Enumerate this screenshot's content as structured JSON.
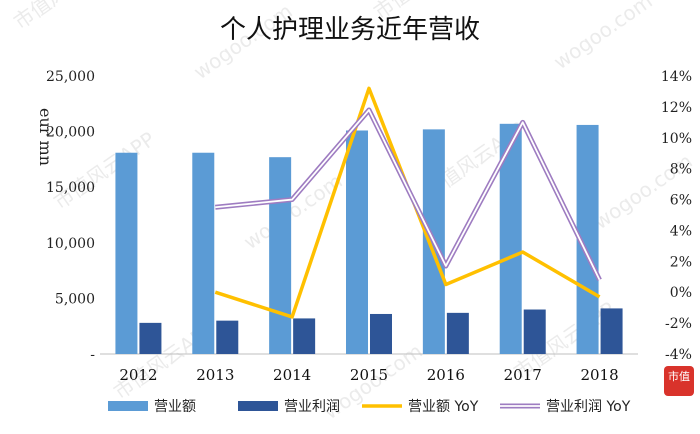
{
  "chart_data": {
    "type": "bar",
    "title": "个人护理业务近年营收",
    "unit_label": "eur mn",
    "categories": [
      "2012",
      "2013",
      "2014",
      "2015",
      "2016",
      "2017",
      "2018"
    ],
    "series": [
      {
        "name": "营业额",
        "axis": "left",
        "kind": "bar",
        "color": "#5b9bd5",
        "values": [
          18100,
          18100,
          17700,
          20100,
          20200,
          20700,
          20600
        ]
      },
      {
        "name": "营业利润",
        "axis": "left",
        "kind": "bar",
        "color": "#2e5597",
        "values": [
          2800,
          3000,
          3200,
          3600,
          3700,
          4000,
          4100
        ]
      },
      {
        "name": "营业额 YoY",
        "axis": "right",
        "kind": "line",
        "color": "#ffc000",
        "values": [
          null,
          0.0,
          -1.6,
          13.2,
          0.5,
          2.6,
          -0.3
        ]
      },
      {
        "name": "营业利润 YoY",
        "axis": "right",
        "kind": "line",
        "color": "#9e7cc1",
        "values": [
          null,
          5.5,
          6.0,
          11.8,
          1.7,
          11.0,
          0.8
        ]
      }
    ],
    "y_left": {
      "min": 0,
      "max": 25000,
      "ticks": [
        0,
        5000,
        10000,
        15000,
        20000,
        25000
      ],
      "tick_labels": [
        "-",
        "5,000",
        "10,000",
        "15,000",
        "20,000",
        "25,000"
      ]
    },
    "y_right": {
      "min": -4,
      "max": 14,
      "ticks": [
        -4,
        -2,
        0,
        2,
        4,
        6,
        8,
        10,
        12,
        14
      ],
      "tick_labels": [
        "-4%",
        "-2%",
        "0%",
        "2%",
        "4%",
        "6%",
        "8%",
        "10%",
        "12%",
        "14%"
      ]
    },
    "grid": false,
    "legend_position": "bottom"
  },
  "watermark": {
    "text_cn": "市值风云APP",
    "text_url": "wogoo.com",
    "logo_text": "市值"
  }
}
